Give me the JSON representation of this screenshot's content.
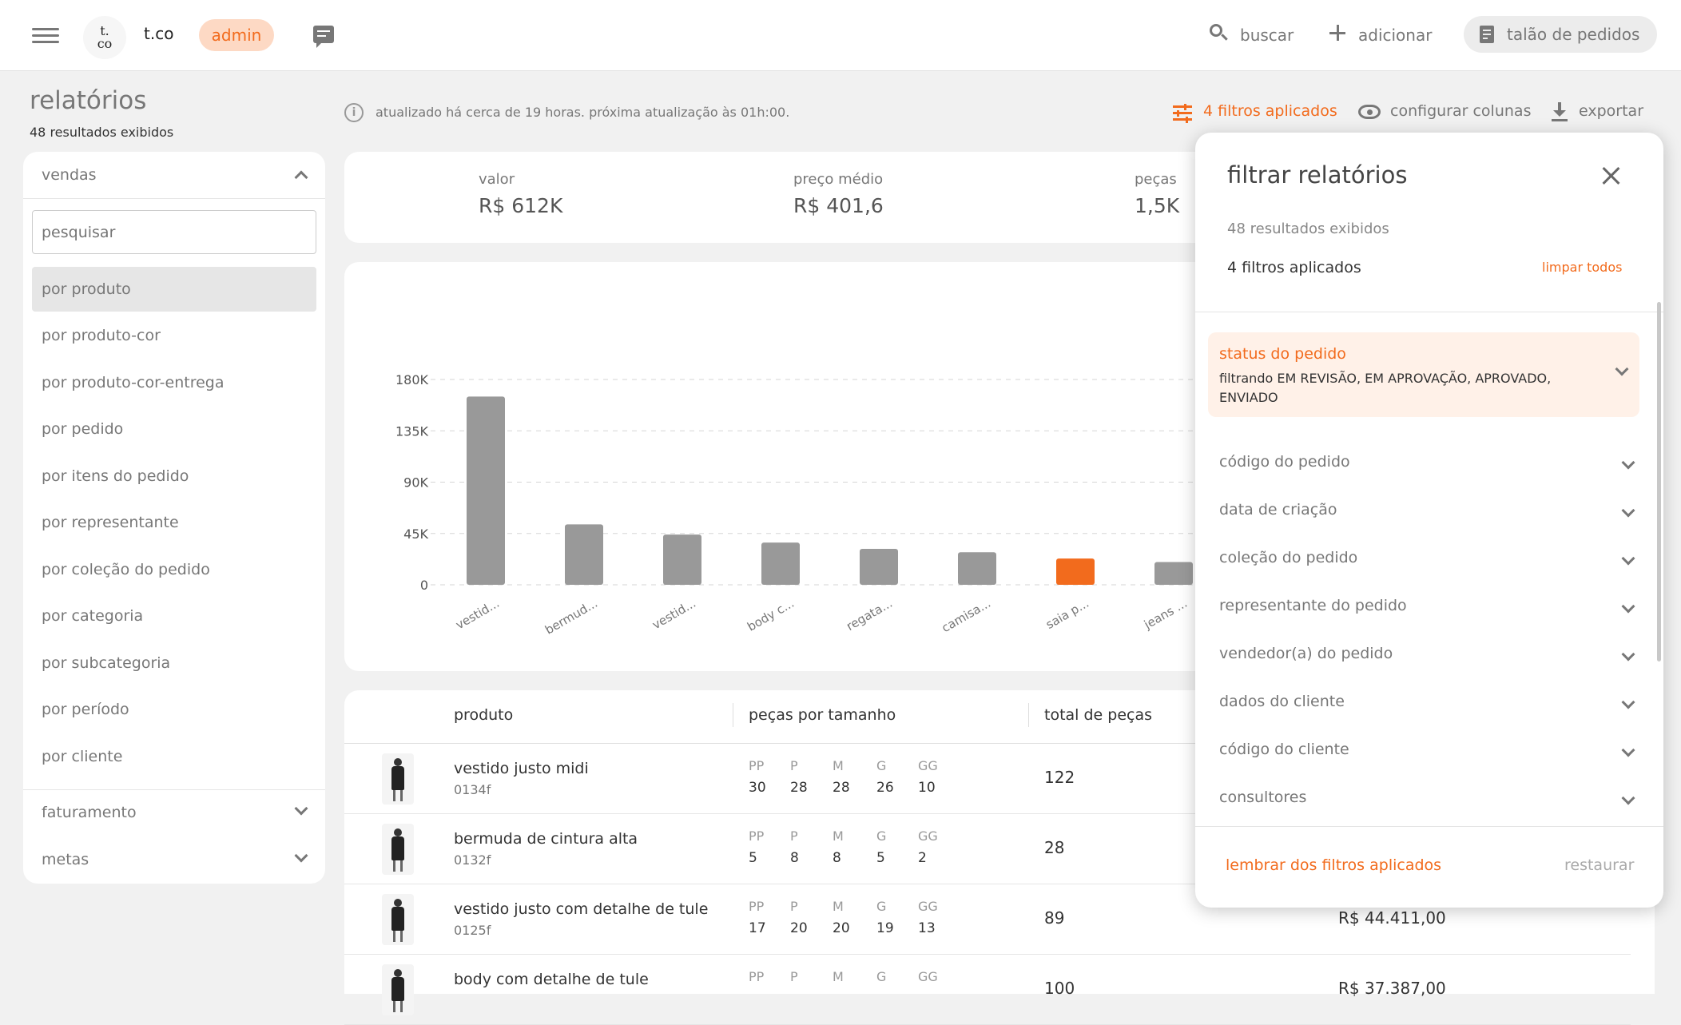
{
  "header": {
    "logo_text": "t. co",
    "brand": "t.co",
    "badge": "admin",
    "search_label": "buscar",
    "add_label": "adicionar",
    "order_pad_label": "talão de pedidos"
  },
  "page": {
    "title": "relatórios",
    "results": "48 resultados exibidos",
    "update_note": "atualizado há cerca de 19 horas. próxima atualização às 01h:00.",
    "filters_applied": "4 filtros aplicados",
    "configure_columns": "configurar colunas",
    "export": "exportar"
  },
  "sidebar": {
    "section_sales": "vendas",
    "search_placeholder": "pesquisar",
    "items": [
      "por produto",
      "por produto-cor",
      "por produto-cor-entrega",
      "por pedido",
      "por itens do pedido",
      "por representante",
      "por coleção do pedido",
      "por categoria",
      "por subcategoria",
      "por período",
      "por cliente"
    ],
    "section_billing": "faturamento",
    "section_goals": "metas"
  },
  "kpis": [
    {
      "label": "valor",
      "value": "R$ 612K"
    },
    {
      "label": "preço médio",
      "value": "R$ 401,6"
    },
    {
      "label": "peças",
      "value": "1,5K"
    }
  ],
  "chart_data": {
    "type": "bar",
    "categories": [
      "vestid...",
      "bermud...",
      "vestid...",
      "body c...",
      "regata...",
      "camisa...",
      "saia p...",
      "jeans ..."
    ],
    "values": [
      165000,
      53000,
      44000,
      37000,
      31500,
      28500,
      23000,
      20000
    ],
    "highlight_index": 6,
    "bar_color": "#999999",
    "highlight_color": "#f26b1d",
    "yticks": [
      "0",
      "45K",
      "90K",
      "135K",
      "180K"
    ],
    "ylim": [
      0,
      180000
    ],
    "grid": true
  },
  "table": {
    "headers": {
      "product": "produto",
      "sizes": "peças por tamanho",
      "total": "total de peças"
    },
    "size_labels": [
      "PP",
      "P",
      "M",
      "G",
      "GG"
    ],
    "rows": [
      {
        "name": "vestido justo midi",
        "code": "0134f",
        "sizes": [
          "30",
          "28",
          "28",
          "26",
          "10"
        ],
        "total": "122",
        "value": ""
      },
      {
        "name": "bermuda de cintura alta",
        "code": "0132f",
        "sizes": [
          "5",
          "8",
          "8",
          "5",
          "2"
        ],
        "total": "28",
        "value": ""
      },
      {
        "name": "vestido justo com detalhe de tule",
        "code": "0125f",
        "sizes": [
          "17",
          "20",
          "20",
          "19",
          "13"
        ],
        "total": "89",
        "value": "R$ 44.411,00"
      },
      {
        "name": "body com detalhe de tule",
        "code": "",
        "sizes": [
          "",
          "",
          "",
          "",
          ""
        ],
        "total": "100",
        "value": "R$ 37.387,00"
      }
    ]
  },
  "filter_panel": {
    "title": "filtrar relatórios",
    "results": "48 resultados exibidos",
    "applied": "4 filtros aplicados",
    "clear_all": "limpar todos",
    "active_filter": {
      "title": "status do pedido",
      "description": "filtrando EM REVISÃO, EM APROVAÇÃO, APROVADO, ENVIADO"
    },
    "filters": [
      "código do pedido",
      "data de criação",
      "coleção do pedido",
      "representante do pedido",
      "vendedor(a) do pedido",
      "dados do cliente",
      "código do cliente",
      "consultores"
    ],
    "remember": "lembrar dos filtros aplicados",
    "restore": "restaurar"
  }
}
